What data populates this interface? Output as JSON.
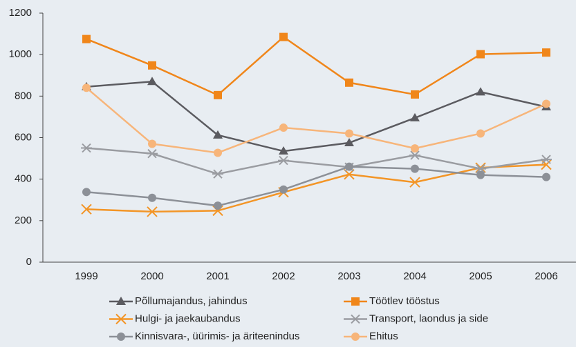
{
  "chart_data": {
    "type": "line",
    "categories": [
      "1999",
      "2000",
      "2001",
      "2002",
      "2003",
      "2004",
      "2005",
      "2006"
    ],
    "ylim": [
      0,
      1200
    ],
    "yticks": [
      0,
      200,
      400,
      600,
      800,
      1000,
      1200
    ],
    "series": [
      {
        "name": "Põllumajandus, jahindus",
        "color": "#5b5b60",
        "marker": "triangle",
        "values": [
          845,
          870,
          612,
          535,
          575,
          695,
          820,
          748
        ]
      },
      {
        "name": "Töötlev tööstus",
        "color": "#f0861a",
        "marker": "square",
        "values": [
          1075,
          948,
          805,
          1085,
          865,
          808,
          1002,
          1010
        ]
      },
      {
        "name": "Hulgi- ja jaekaubandus",
        "color": "#f39526",
        "marker": "x",
        "values": [
          255,
          243,
          248,
          337,
          423,
          385,
          455,
          470
        ]
      },
      {
        "name": "Transport, laondus ja side",
        "color": "#9a9ca1",
        "marker": "asterisk",
        "values": [
          550,
          523,
          425,
          490,
          458,
          515,
          450,
          495
        ]
      },
      {
        "name": "Kinnisvara-, üürimis- ja äriteenindus",
        "color": "#8c9097",
        "marker": "circle",
        "values": [
          338,
          310,
          272,
          350,
          460,
          450,
          420,
          410
        ]
      },
      {
        "name": "Ehitus",
        "color": "#f7b57a",
        "marker": "circle",
        "values": [
          840,
          570,
          527,
          648,
          620,
          548,
          620,
          763
        ]
      }
    ]
  }
}
